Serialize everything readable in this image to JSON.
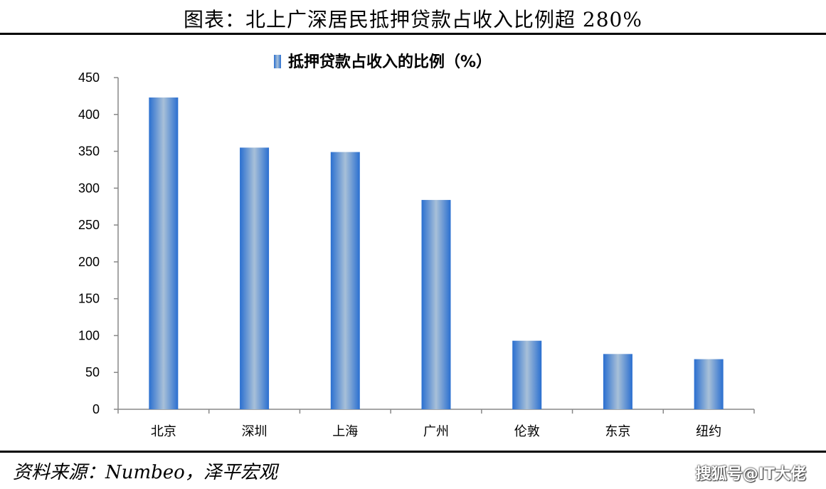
{
  "header": {
    "title": "图表：北上广深居民抵押贷款占收入比例超 280%"
  },
  "footer": {
    "source": "资料来源：Numbeo，泽平宏观",
    "watermark": "搜狐号@IT大佬"
  },
  "colors": {
    "bar_edge": "#2a6fd0",
    "bar_center": "#a8c0d8",
    "axis": "#888888"
  },
  "chart_data": {
    "type": "bar",
    "categories": [
      "北京",
      "深圳",
      "上海",
      "广州",
      "伦敦",
      "东京",
      "纽约"
    ],
    "series": [
      {
        "name": "抵押贷款占收入的比例（%）",
        "values": [
          423,
          355,
          349,
          284,
          93,
          75,
          68
        ]
      }
    ],
    "yticks": [
      "0",
      "50",
      "100",
      "150",
      "200",
      "250",
      "300",
      "350",
      "400",
      "450"
    ],
    "ylim": [
      0,
      450
    ],
    "legend": "top-center",
    "grid": false
  }
}
